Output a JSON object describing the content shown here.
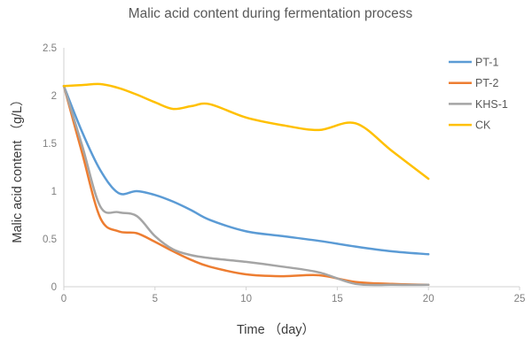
{
  "chart_data": {
    "type": "line",
    "title": "Malic acid content during fermentation process",
    "xlabel": "Time （day）",
    "ylabel": "Malic acid content （g/L）",
    "xlim": [
      0,
      25
    ],
    "ylim": [
      0,
      2.5
    ],
    "x_ticks": [
      0,
      5,
      10,
      15,
      20,
      25
    ],
    "y_ticks": [
      0,
      0.5,
      1,
      1.5,
      2,
      2.5
    ],
    "y_tick_labels": [
      "0",
      "0.5",
      "1",
      "1.5",
      "2",
      "2.5"
    ],
    "x_tick_labels": [
      "0",
      "5",
      "10",
      "15",
      "20",
      "25"
    ],
    "grid": false,
    "legend_position": "right-overlay",
    "line_style": "smooth",
    "x": [
      0,
      1,
      2,
      3,
      4,
      5,
      6,
      7,
      8,
      10,
      12,
      14,
      16,
      18,
      20
    ],
    "series": [
      {
        "name": "PT-1",
        "color": "#5B9BD5",
        "values": [
          2.1,
          1.62,
          1.22,
          0.98,
          1.0,
          0.96,
          0.89,
          0.8,
          0.7,
          0.58,
          0.53,
          0.48,
          0.42,
          0.37,
          0.34
        ]
      },
      {
        "name": "PT-2",
        "color": "#ED7D31",
        "values": [
          2.1,
          1.4,
          0.72,
          0.58,
          0.56,
          0.47,
          0.37,
          0.28,
          0.21,
          0.13,
          0.11,
          0.12,
          0.05,
          0.03,
          0.02
        ]
      },
      {
        "name": "KHS-1",
        "color": "#A5A5A5",
        "values": [
          2.1,
          1.48,
          0.84,
          0.78,
          0.74,
          0.53,
          0.39,
          0.33,
          0.3,
          0.26,
          0.21,
          0.15,
          0.03,
          0.02,
          0.02
        ]
      },
      {
        "name": "CK",
        "color": "#FFC000",
        "values": [
          2.1,
          2.11,
          2.12,
          2.08,
          2.01,
          1.93,
          1.86,
          1.89,
          1.91,
          1.77,
          1.69,
          1.64,
          1.71,
          1.42,
          1.13
        ]
      }
    ],
    "colors": {
      "axis_line": "#d2d2d2",
      "tick_label": "#7f7f7f",
      "title": "#595959",
      "axis_title": "#3a3a3a",
      "background": "#ffffff"
    }
  }
}
